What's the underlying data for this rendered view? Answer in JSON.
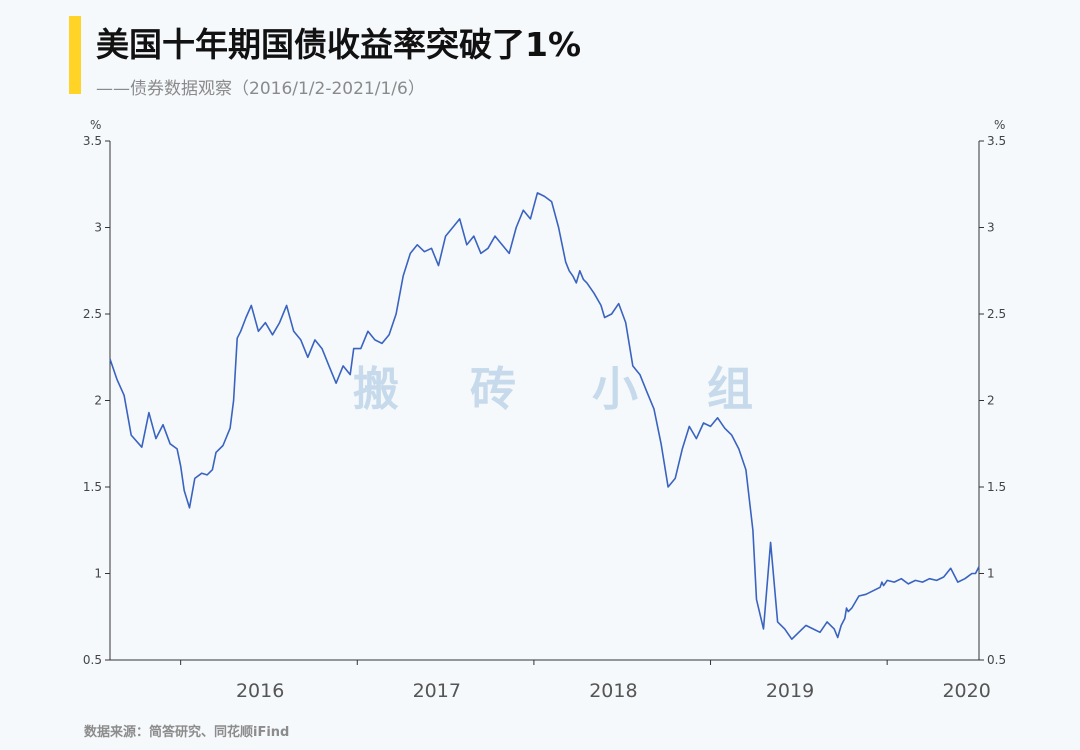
{
  "header": {
    "title": "美国十年期国债收益率突破了1%",
    "subtitle": "——债券数据观察（2016/1/2-2021/1/6）"
  },
  "footer": {
    "source": "数据来源：简答研究、同花顺iFind"
  },
  "watermark": [
    "搬",
    "砖",
    "小",
    "组"
  ],
  "colors": {
    "line": "#3a63c0",
    "accent": "#ffd426",
    "background": "#f5f9fc"
  },
  "chart_data": {
    "type": "line",
    "title": "美国十年期国债收益率突破了1%",
    "xlabel": "",
    "ylabel_left": "%",
    "ylabel_right": "%",
    "ylim": [
      0.5,
      3.5
    ],
    "yticks": [
      "0.5",
      "1",
      "1.5",
      "2",
      "2.5",
      "3",
      "3.5"
    ],
    "xticks": [
      "2016",
      "2017",
      "2018",
      "2019",
      "2020"
    ],
    "xlim": [
      2015.6,
      2020.52
    ],
    "grid": false,
    "series": [
      {
        "name": "",
        "x": [
          2015.6,
          2015.64,
          2015.68,
          2015.72,
          2015.78,
          2015.82,
          2015.86,
          2015.9,
          2015.94,
          2015.98,
          2016.0,
          2016.02,
          2016.05,
          2016.08,
          2016.12,
          2016.15,
          2016.18,
          2016.2,
          2016.24,
          2016.28,
          2016.3,
          2016.32,
          2016.34,
          2016.37,
          2016.4,
          2016.44,
          2016.48,
          2016.52,
          2016.56,
          2016.6,
          2016.64,
          2016.68,
          2016.72,
          2016.76,
          2016.8,
          2016.84,
          2016.88,
          2016.92,
          2016.96,
          2016.98,
          2017.02,
          2017.06,
          2017.1,
          2017.14,
          2017.18,
          2017.22,
          2017.26,
          2017.3,
          2017.34,
          2017.38,
          2017.42,
          2017.46,
          2017.5,
          2017.54,
          2017.58,
          2017.62,
          2017.66,
          2017.7,
          2017.74,
          2017.78,
          2017.82,
          2017.86,
          2017.9,
          2017.94,
          2017.98,
          2018.02,
          2018.06,
          2018.1,
          2018.14,
          2018.18,
          2018.2,
          2018.22,
          2018.24,
          2018.26,
          2018.28,
          2018.3,
          2018.34,
          2018.38,
          2018.4,
          2018.44,
          2018.48,
          2018.52,
          2018.56,
          2018.6,
          2018.64,
          2018.68,
          2018.72,
          2018.76,
          2018.8,
          2018.84,
          2018.88,
          2018.92,
          2018.96,
          2019.0,
          2019.04,
          2019.08,
          2019.12,
          2019.16,
          2019.2,
          2019.24,
          2019.26,
          2019.3,
          2019.34,
          2019.38,
          2019.42,
          2019.46,
          2019.5,
          2019.54,
          2019.58,
          2019.62,
          2019.66,
          2019.68,
          2019.7,
          2019.72,
          2019.74,
          2019.75,
          2019.76,
          2019.77,
          2019.78,
          2019.8,
          2019.84,
          2019.88,
          2019.92,
          2019.96,
          2019.97,
          2019.98,
          2020.0,
          2020.04,
          2020.08,
          2020.12,
          2020.16,
          2020.2,
          2020.24,
          2020.28,
          2020.32,
          2020.36,
          2020.4,
          2020.44,
          2020.48,
          2020.5,
          2020.52
        ],
        "values": [
          2.24,
          2.12,
          2.03,
          1.8,
          1.73,
          1.93,
          1.78,
          1.86,
          1.75,
          1.72,
          1.62,
          1.48,
          1.38,
          1.55,
          1.58,
          1.57,
          1.6,
          1.7,
          1.74,
          1.84,
          2.0,
          2.36,
          2.4,
          2.48,
          2.55,
          2.4,
          2.45,
          2.38,
          2.45,
          2.55,
          2.4,
          2.35,
          2.25,
          2.35,
          2.3,
          2.2,
          2.1,
          2.2,
          2.15,
          2.3,
          2.3,
          2.4,
          2.35,
          2.33,
          2.38,
          2.5,
          2.72,
          2.85,
          2.9,
          2.86,
          2.88,
          2.78,
          2.95,
          3.0,
          3.05,
          2.9,
          2.95,
          2.85,
          2.88,
          2.95,
          2.9,
          2.85,
          3.0,
          3.1,
          3.05,
          3.2,
          3.18,
          3.15,
          3.0,
          2.8,
          2.75,
          2.72,
          2.68,
          2.75,
          2.7,
          2.68,
          2.62,
          2.55,
          2.48,
          2.5,
          2.56,
          2.45,
          2.2,
          2.15,
          2.05,
          1.95,
          1.75,
          1.5,
          1.55,
          1.72,
          1.85,
          1.78,
          1.87,
          1.85,
          1.9,
          1.84,
          1.8,
          1.72,
          1.6,
          1.25,
          0.85,
          0.68,
          1.18,
          0.72,
          0.68,
          0.62,
          0.66,
          0.7,
          0.68,
          0.66,
          0.72,
          0.7,
          0.68,
          0.63,
          0.7,
          0.72,
          0.74,
          0.8,
          0.78,
          0.8,
          0.87,
          0.88,
          0.9,
          0.92,
          0.95,
          0.93,
          0.96,
          0.95,
          0.97,
          0.94,
          0.96,
          0.95,
          0.97,
          0.96,
          0.98,
          1.03,
          0.95,
          0.97,
          1.0,
          1.0,
          1.04
        ]
      }
    ]
  }
}
